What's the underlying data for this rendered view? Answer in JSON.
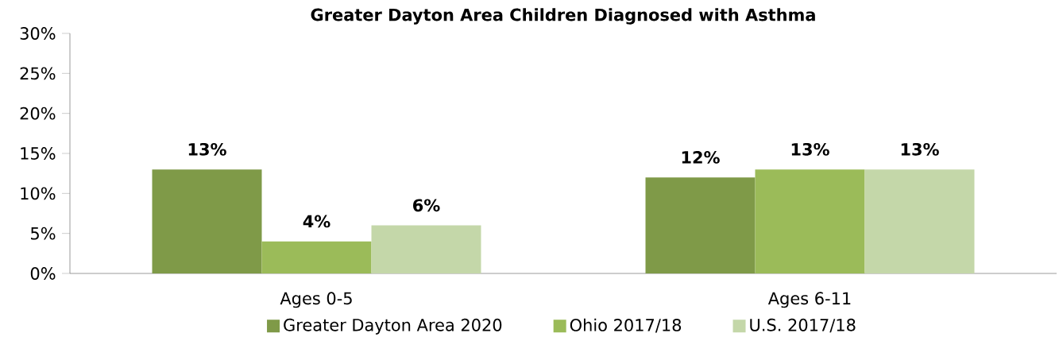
{
  "chart_data": {
    "type": "bar",
    "title": "Greater Dayton Area Children Diagnosed with Asthma",
    "categories": [
      "Ages 0-5",
      "Ages 6-11"
    ],
    "series": [
      {
        "name": "Greater Dayton Area 2020",
        "color": "#7f9a48",
        "values": [
          13,
          12
        ],
        "value_labels": [
          "13%",
          "12%"
        ]
      },
      {
        "name": "Ohio 2017/18",
        "color": "#9bbb59",
        "values": [
          4,
          13
        ],
        "value_labels": [
          "4%",
          "13%"
        ]
      },
      {
        "name": "U.S. 2017/18",
        "color": "#c4d7a9",
        "values": [
          6,
          13
        ],
        "value_labels": [
          "6%",
          "13%"
        ]
      }
    ],
    "ylim": [
      0,
      30
    ],
    "yticks": [
      {
        "value": 0,
        "label": "0%"
      },
      {
        "value": 5,
        "label": "5%"
      },
      {
        "value": 10,
        "label": "10%"
      },
      {
        "value": 15,
        "label": "15%"
      },
      {
        "value": 20,
        "label": "20%"
      },
      {
        "value": 25,
        "label": "25%"
      },
      {
        "value": 30,
        "label": "30%"
      }
    ],
    "grid": false,
    "legend": "bottom"
  }
}
